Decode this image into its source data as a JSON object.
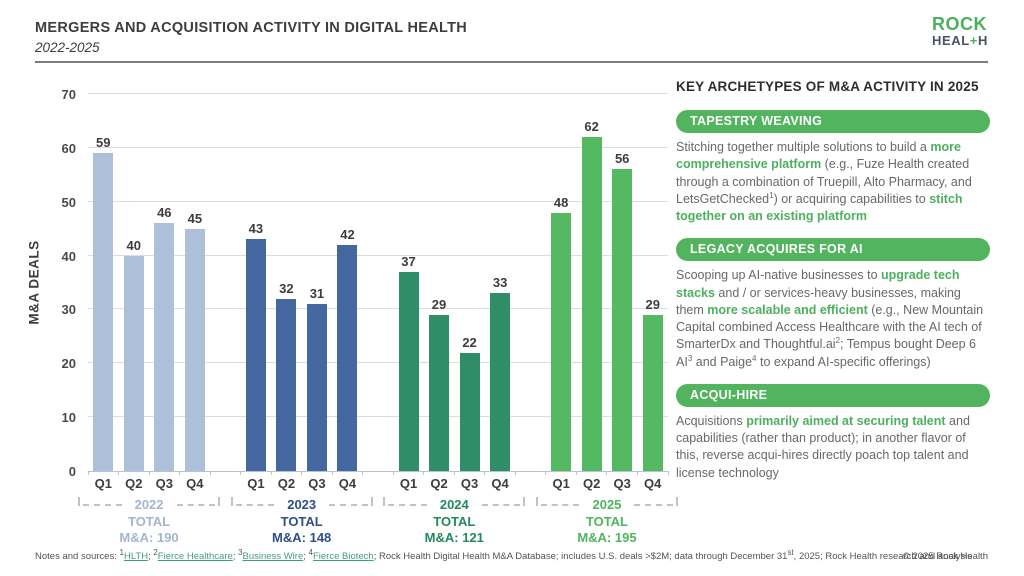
{
  "header": {
    "title": "MERGERS AND ACQUISITION ACTIVITY IN DIGITAL HEALTH",
    "subtitle": "2022-2025",
    "logo": {
      "line1": "ROCK",
      "line2_pre": "HEAL",
      "plus": "+",
      "line2_post": "H"
    }
  },
  "chart_data": {
    "type": "bar",
    "title": "Mergers and acquisition activity in digital health 2022-2025",
    "ylabel": "M&A DEALS",
    "xlabel": "",
    "ylim": [
      0,
      70
    ],
    "yticks": [
      0,
      10,
      20,
      30,
      40,
      50,
      60,
      70
    ],
    "grid": true,
    "categories": [
      "Q1",
      "Q2",
      "Q3",
      "Q4"
    ],
    "series": [
      {
        "name": "2022",
        "values": [
          59,
          40,
          46,
          45
        ],
        "color": "#adc0da",
        "label_color": "#a3b5d0",
        "total_word": "TOTAL",
        "total_label": "M&A: 190"
      },
      {
        "name": "2023",
        "values": [
          43,
          32,
          31,
          42
        ],
        "color": "#44679f",
        "label_color": "#2c4f8e",
        "total_word": "TOTAL",
        "total_label": "M&A: 148"
      },
      {
        "name": "2024",
        "values": [
          37,
          29,
          22,
          33
        ],
        "color": "#2f8d68",
        "label_color": "#24885f",
        "total_word": "TOTAL",
        "total_label": "M&A: 121"
      },
      {
        "name": "2025",
        "values": [
          48,
          62,
          56,
          29
        ],
        "color": "#55b962",
        "label_color": "#4fb55e",
        "total_word": "TOTAL",
        "total_label": "M&A: 195"
      }
    ]
  },
  "panel": {
    "title": "KEY ARCHETYPES OF M&A ACTIVITY IN 2025",
    "pill_color": "#52b45f",
    "highlight_color": "#4db05f",
    "sections": [
      {
        "pill": "TAPESTRY WEAVING",
        "body": [
          {
            "t": "Stitching together multiple solutions to build a "
          },
          {
            "t": "more comprehensive platform",
            "b": true
          },
          {
            "t": " (e.g., Fuze Health created through a combination of Truepill, Alto Pharmacy, and LetsGetChecked"
          },
          {
            "t": "1",
            "sup": true
          },
          {
            "t": ") or acquiring capabilities to "
          },
          {
            "t": "stitch together on an existing platform",
            "b": true
          }
        ]
      },
      {
        "pill": "LEGACY ACQUIRES FOR AI",
        "body": [
          {
            "t": "Scooping up AI-native businesses to "
          },
          {
            "t": "upgrade tech stacks",
            "b": true
          },
          {
            "t": " and / or services-heavy businesses, making them "
          },
          {
            "t": "more scalable and efficient",
            "b": true
          },
          {
            "t": " (e.g., New Mountain Capital combined Access Healthcare with the AI tech of SmarterDx and Thoughtful.ai"
          },
          {
            "t": "2",
            "sup": true
          },
          {
            "t": "; Tempus bought Deep 6 AI"
          },
          {
            "t": "3",
            "sup": true
          },
          {
            "t": " and Paige"
          },
          {
            "t": "4",
            "sup": true
          },
          {
            "t": " to expand AI-specific offerings)"
          }
        ]
      },
      {
        "pill": "ACQUI-HIRE",
        "body": [
          {
            "t": "Acquisitions "
          },
          {
            "t": "primarily aimed at securing talent",
            "b": true
          },
          {
            "t": " and capabilities (rather than product); in another flavor of this, reverse acqui-hires directly poach top talent and license technology"
          }
        ]
      }
    ]
  },
  "footer": {
    "segments": [
      {
        "t": "Notes and sources: "
      },
      {
        "t": "1",
        "sup": true
      },
      {
        "t": "HLTH",
        "link": true
      },
      {
        "t": "; "
      },
      {
        "t": "2",
        "sup": true
      },
      {
        "t": "Fierce Healthcare",
        "link": true
      },
      {
        "t": "; "
      },
      {
        "t": "3",
        "sup": true
      },
      {
        "t": "Business Wire",
        "link": true
      },
      {
        "t": "; "
      },
      {
        "t": "4",
        "sup": true
      },
      {
        "t": "Fierce Biotech",
        "link": true
      },
      {
        "t": "; Rock Health Digital Health M&A Database; includes U.S. deals >$2M; data through December 31"
      },
      {
        "t": "st",
        "sup": true
      },
      {
        "t": ", 2025; Rock Health research and analysis"
      }
    ],
    "copyright": "© 2025 Rock Health"
  }
}
